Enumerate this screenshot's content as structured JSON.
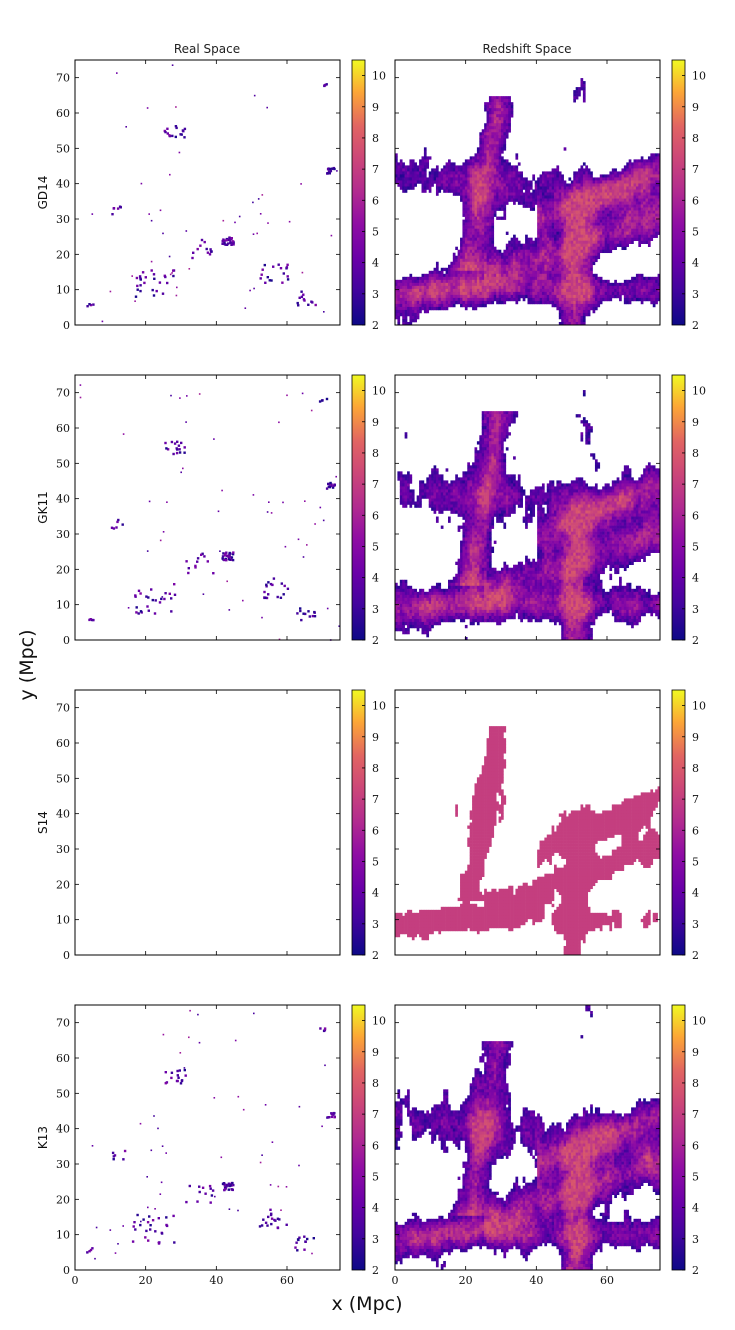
{
  "chart_data": {
    "type": "heatmap",
    "column_titles": [
      "Real Space",
      "Redshift  Space"
    ],
    "row_labels": [
      "GD14",
      "GK11",
      "S14",
      "K13"
    ],
    "xlabel": "x (Mpc)",
    "ylabel": "y (Mpc)",
    "xlim": [
      0,
      75
    ],
    "ylim": [
      0,
      75
    ],
    "x_ticks": [
      0,
      20,
      40,
      60
    ],
    "y_ticks": [
      0,
      10,
      20,
      30,
      40,
      50,
      60,
      70
    ],
    "colorbar": {
      "colormap": "plasma",
      "range": [
        2,
        10.5
      ],
      "ticks": [
        2,
        3,
        4,
        5,
        6,
        7,
        8,
        9,
        10
      ]
    },
    "panels_note_values": {
      "S14_redshift_value": 7.0
    }
  }
}
